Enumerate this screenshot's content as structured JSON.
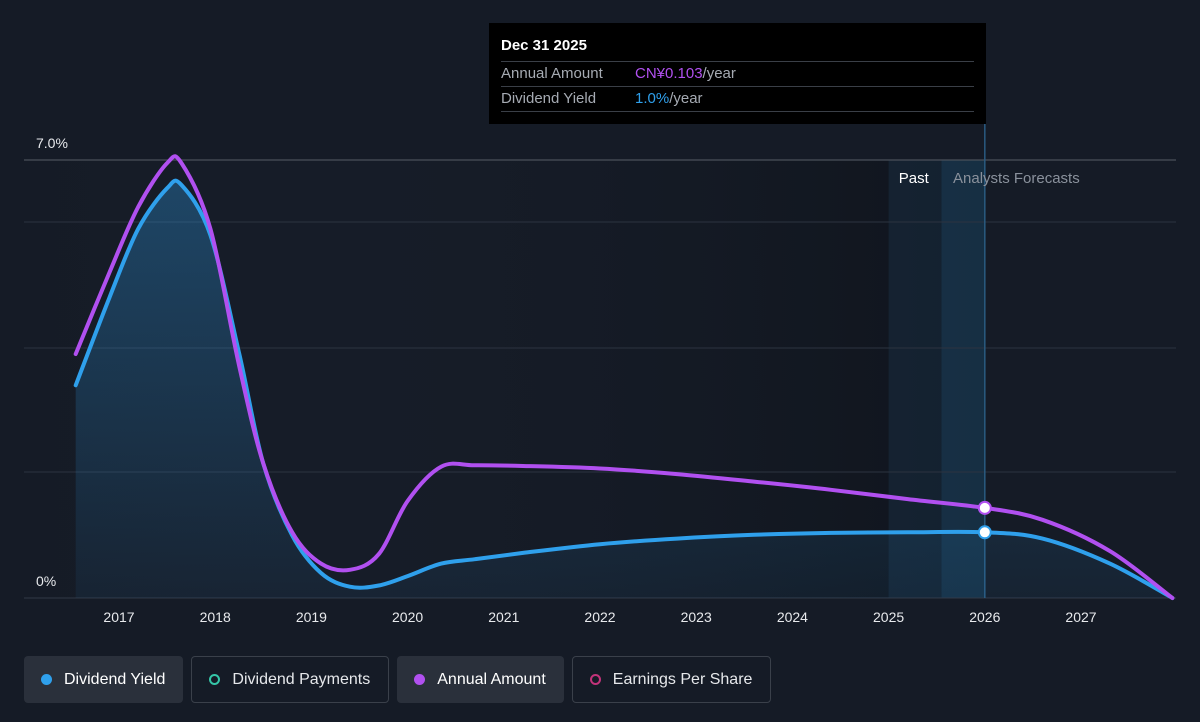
{
  "tooltip": {
    "date": "Dec 31 2025",
    "rows": [
      {
        "label": "Annual Amount",
        "value": "CN¥0.103",
        "suffix": "/year"
      },
      {
        "label": "Dividend Yield",
        "value": "1.0%",
        "suffix": "/year"
      }
    ]
  },
  "regions": {
    "past": "Past",
    "forecast": "Analysts Forecasts"
  },
  "legend": [
    {
      "label": "Dividend Yield",
      "color": "#2fa0ec",
      "style": "filled",
      "active": true
    },
    {
      "label": "Dividend Payments",
      "color": "#35c6a8",
      "style": "ring",
      "active": false
    },
    {
      "label": "Annual Amount",
      "color": "#b150f0",
      "style": "filled",
      "active": true
    },
    {
      "label": "Earnings Per Share",
      "color": "#c2337a",
      "style": "ring",
      "active": false
    }
  ],
  "chart_data": {
    "type": "line",
    "x_ticks": [
      "2017",
      "2018",
      "2019",
      "2020",
      "2021",
      "2022",
      "2023",
      "2024",
      "2025",
      "2026",
      "2027"
    ],
    "y_ticks": [
      "0%",
      "7.0%"
    ],
    "ylim": [
      0,
      7.0
    ],
    "xlim": [
      2016.55,
      2027.95
    ],
    "past_forecast_divider": 2026.0,
    "grid": true,
    "series": [
      {
        "name": "Dividend Yield",
        "color": "#2fa0ec",
        "fill": true,
        "x": [
          2016.55,
          2016.9,
          2017.2,
          2017.5,
          2017.65,
          2017.95,
          2018.25,
          2018.5,
          2018.8,
          2019.1,
          2019.4,
          2019.7,
          2020.0,
          2020.35,
          2020.7,
          2021.2,
          2022.0,
          2022.8,
          2023.6,
          2024.4,
          2025.2,
          2026.0,
          2026.6,
          2027.3,
          2027.95
        ],
        "y": [
          3.4,
          4.8,
          5.9,
          6.55,
          6.6,
          5.8,
          3.9,
          2.15,
          1.0,
          0.4,
          0.18,
          0.2,
          0.35,
          0.55,
          0.62,
          0.72,
          0.86,
          0.95,
          1.01,
          1.04,
          1.05,
          1.05,
          0.95,
          0.55,
          0.0
        ]
      },
      {
        "name": "Annual Amount",
        "color": "#b150f0",
        "fill": false,
        "x": [
          2016.55,
          2016.9,
          2017.2,
          2017.5,
          2017.65,
          2017.95,
          2018.25,
          2018.5,
          2018.8,
          2019.1,
          2019.4,
          2019.7,
          2020.0,
          2020.35,
          2020.7,
          2021.2,
          2022.0,
          2022.8,
          2023.6,
          2024.4,
          2025.2,
          2026.0,
          2026.6,
          2027.3,
          2027.95
        ],
        "y": [
          3.9,
          5.2,
          6.25,
          6.95,
          6.95,
          5.9,
          3.7,
          2.15,
          1.05,
          0.55,
          0.45,
          0.7,
          1.55,
          2.1,
          2.12,
          2.11,
          2.07,
          1.98,
          1.86,
          1.73,
          1.58,
          1.44,
          1.25,
          0.75,
          0.0
        ]
      }
    ],
    "highlight": {
      "x": 2026.0,
      "values": [
        1.05,
        1.44
      ]
    }
  }
}
